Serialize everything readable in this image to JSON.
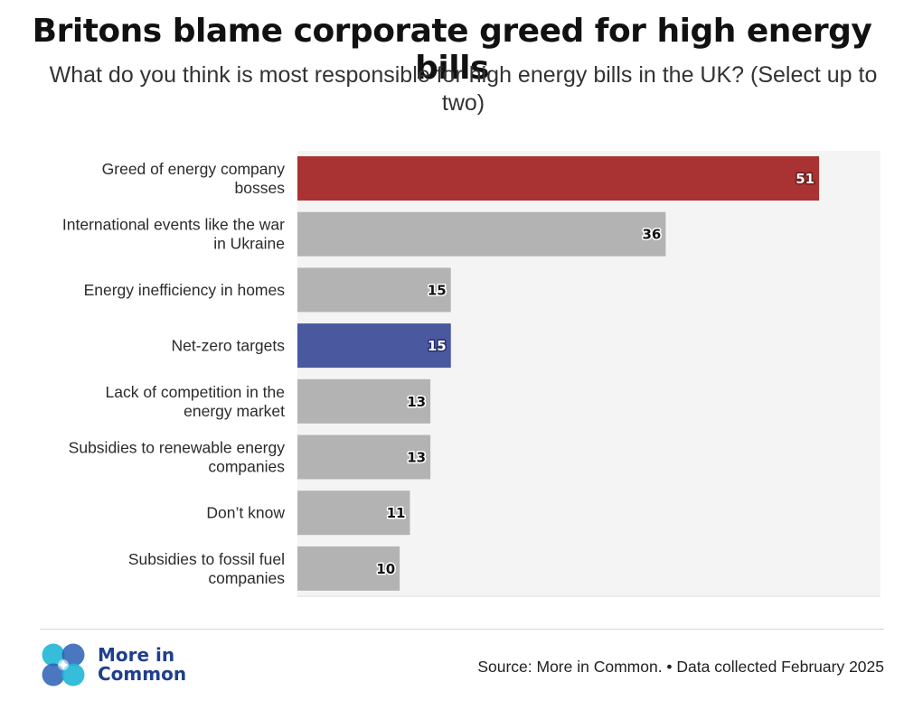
{
  "header": {
    "title": "Britons blame corporate greed for high energy bills",
    "subtitle": "What do you think is most responsible for high energy bills in the UK? (Select up to two)"
  },
  "chart_data": {
    "type": "bar",
    "orientation": "horizontal",
    "title": "Britons blame corporate greed for high energy bills",
    "subtitle": "What do you think is most responsible for high energy bills in the UK? (Select up to two)",
    "xlabel": "",
    "ylabel": "",
    "xlim": [
      0,
      57
    ],
    "grid": false,
    "categories": [
      [
        "Greed of energy company",
        "bosses"
      ],
      [
        "International events like the war",
        "in Ukraine"
      ],
      [
        "Energy inefficiency in homes"
      ],
      [
        "Net-zero targets"
      ],
      [
        "Lack of competition in the",
        "energy market"
      ],
      [
        "Subsidies to renewable energy",
        "companies"
      ],
      [
        "Don’t know"
      ],
      [
        "Subsidies to fossil fuel",
        "companies"
      ]
    ],
    "values": [
      51,
      36,
      15,
      15,
      13,
      13,
      11,
      10
    ],
    "colors": [
      "#a93232",
      "#b3b3b3",
      "#b3b3b3",
      "#4a58a0",
      "#b3b3b3",
      "#b3b3b3",
      "#b3b3b3",
      "#b3b3b3"
    ],
    "value_label_fill": [
      "#ffffff",
      "#111111",
      "#111111",
      "#ffffff",
      "#111111",
      "#111111",
      "#111111",
      "#111111"
    ],
    "value_label_stroke": [
      "#6e1c1c",
      "#ffffff",
      "#ffffff",
      "#26306a",
      "#ffffff",
      "#ffffff",
      "#ffffff",
      "#ffffff"
    ],
    "plot_background": "#f4f4f4"
  },
  "footer": {
    "logo_line1": "More in",
    "logo_line2": "Common",
    "source": "Source: More in Common. • Data collected February 2025"
  }
}
